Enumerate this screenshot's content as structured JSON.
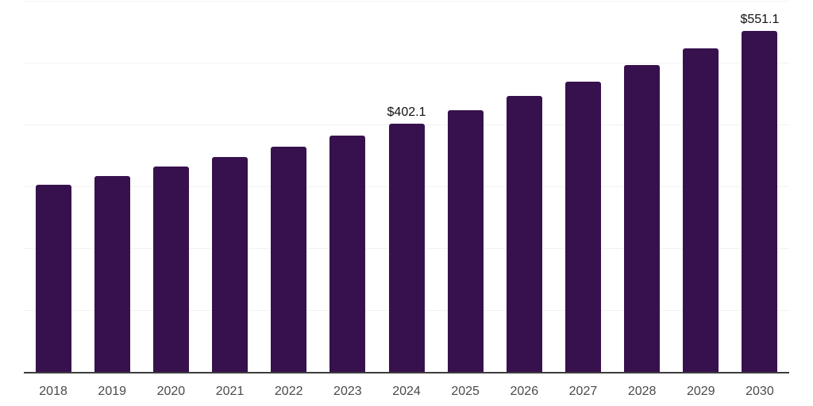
{
  "chart_data": {
    "type": "bar",
    "title": "",
    "xlabel": "",
    "ylabel": "",
    "categories": [
      "2018",
      "2019",
      "2020",
      "2021",
      "2022",
      "2023",
      "2024",
      "2025",
      "2026",
      "2027",
      "2028",
      "2029",
      "2030"
    ],
    "values": [
      303,
      317,
      333,
      348,
      365,
      382,
      402.1,
      424,
      446,
      470,
      496,
      523,
      551.1
    ],
    "data_labels": [
      null,
      null,
      null,
      null,
      null,
      null,
      "$402.1",
      null,
      null,
      null,
      null,
      null,
      "$551.1"
    ],
    "ylim": [
      0,
      600
    ],
    "grid_step": 100,
    "grid": "horizontal",
    "legend_position": "none",
    "colors": {
      "bar": "#37114D",
      "grid_line": "#F2F2F2",
      "axis_line": "#3D3D3D",
      "tick_label": "#4A4A4A",
      "data_label": "#111111",
      "background": "#FFFFFF"
    }
  }
}
